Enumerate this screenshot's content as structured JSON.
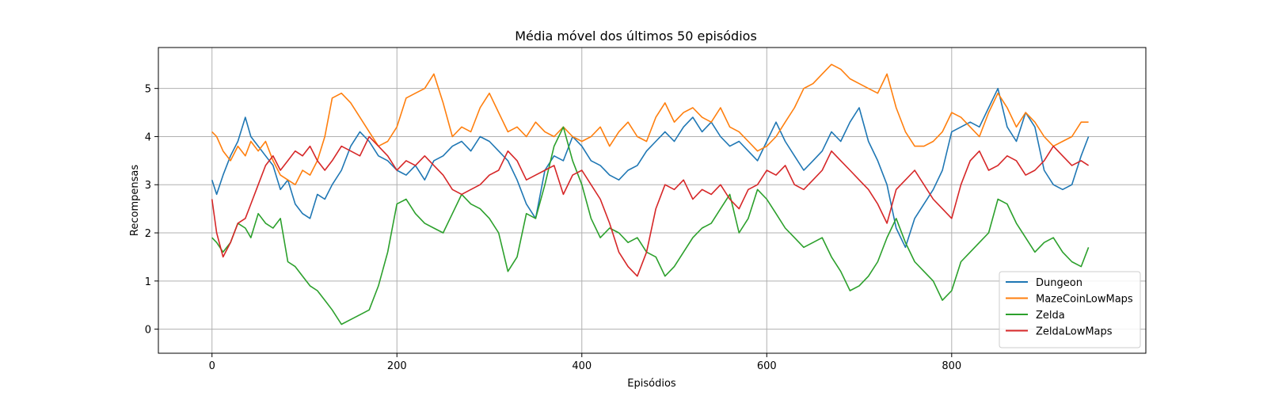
{
  "chart_data": {
    "type": "line",
    "title": "Média móvel dos últimos 50 episódios",
    "xlabel": "Episódios",
    "ylabel": "Recompensas",
    "xlim": [
      -58,
      1010
    ],
    "ylim": [
      -0.5,
      5.85
    ],
    "xticks": [
      0,
      200,
      400,
      600,
      800
    ],
    "yticks": [
      0,
      1,
      2,
      3,
      4,
      5
    ],
    "grid": true,
    "legend_position": "lower-right",
    "series": [
      {
        "name": "Dungeon",
        "color": "#1f77b4",
        "x": [
          0,
          5,
          12,
          20,
          28,
          36,
          42,
          50,
          58,
          66,
          74,
          82,
          90,
          98,
          106,
          114,
          122,
          130,
          140,
          150,
          160,
          170,
          180,
          190,
          200,
          210,
          220,
          230,
          240,
          250,
          260,
          270,
          280,
          290,
          300,
          310,
          320,
          330,
          340,
          350,
          360,
          370,
          380,
          390,
          400,
          410,
          420,
          430,
          440,
          450,
          460,
          470,
          480,
          490,
          500,
          510,
          520,
          530,
          540,
          550,
          560,
          570,
          580,
          590,
          600,
          610,
          620,
          630,
          640,
          650,
          660,
          670,
          680,
          690,
          700,
          710,
          720,
          730,
          740,
          750,
          760,
          770,
          780,
          790,
          800,
          810,
          820,
          830,
          840,
          850,
          860,
          870,
          880,
          890,
          900,
          910,
          920,
          930,
          940,
          948
        ],
        "y": [
          3.1,
          2.8,
          3.2,
          3.6,
          3.9,
          4.4,
          4.0,
          3.8,
          3.6,
          3.4,
          2.9,
          3.1,
          2.6,
          2.4,
          2.3,
          2.8,
          2.7,
          3.0,
          3.3,
          3.8,
          4.1,
          3.9,
          3.6,
          3.5,
          3.3,
          3.2,
          3.4,
          3.1,
          3.5,
          3.6,
          3.8,
          3.9,
          3.7,
          4.0,
          3.9,
          3.7,
          3.5,
          3.1,
          2.6,
          2.3,
          3.3,
          3.6,
          3.5,
          4.0,
          3.8,
          3.5,
          3.4,
          3.2,
          3.1,
          3.3,
          3.4,
          3.7,
          3.9,
          4.1,
          3.9,
          4.2,
          4.4,
          4.1,
          4.3,
          4.0,
          3.8,
          3.9,
          3.7,
          3.5,
          3.9,
          4.3,
          3.9,
          3.6,
          3.3,
          3.5,
          3.7,
          4.1,
          3.9,
          4.3,
          4.6,
          3.9,
          3.5,
          3.0,
          2.1,
          1.7,
          2.3,
          2.6,
          2.9,
          3.3,
          4.1,
          4.2,
          4.3,
          4.2,
          4.6,
          5.0,
          4.2,
          3.9,
          4.5,
          4.2,
          3.3,
          3.0,
          2.9,
          3.0,
          3.6,
          4.0
        ]
      },
      {
        "name": "MazeCoinLowMaps",
        "color": "#ff7f0e",
        "x": [
          0,
          5,
          12,
          20,
          28,
          36,
          42,
          50,
          58,
          66,
          74,
          82,
          90,
          98,
          106,
          114,
          122,
          130,
          140,
          150,
          160,
          170,
          180,
          190,
          200,
          210,
          220,
          230,
          240,
          250,
          260,
          270,
          280,
          290,
          300,
          310,
          320,
          330,
          340,
          350,
          360,
          370,
          380,
          390,
          400,
          410,
          420,
          430,
          440,
          450,
          460,
          470,
          480,
          490,
          500,
          510,
          520,
          530,
          540,
          550,
          560,
          570,
          580,
          590,
          600,
          610,
          620,
          630,
          640,
          650,
          660,
          670,
          680,
          690,
          700,
          710,
          720,
          730,
          740,
          750,
          760,
          770,
          780,
          790,
          800,
          810,
          820,
          830,
          840,
          850,
          860,
          870,
          880,
          890,
          900,
          910,
          920,
          930,
          940,
          948
        ],
        "y": [
          4.1,
          4.0,
          3.7,
          3.5,
          3.8,
          3.6,
          3.9,
          3.7,
          3.9,
          3.5,
          3.2,
          3.1,
          3.0,
          3.3,
          3.2,
          3.5,
          4.0,
          4.8,
          4.9,
          4.7,
          4.4,
          4.1,
          3.8,
          3.9,
          4.2,
          4.8,
          4.9,
          5.0,
          5.3,
          4.7,
          4.0,
          4.2,
          4.1,
          4.6,
          4.9,
          4.5,
          4.1,
          4.2,
          4.0,
          4.3,
          4.1,
          4.0,
          4.2,
          4.0,
          3.9,
          4.0,
          4.2,
          3.8,
          4.1,
          4.3,
          4.0,
          3.9,
          4.4,
          4.7,
          4.3,
          4.5,
          4.6,
          4.4,
          4.3,
          4.6,
          4.2,
          4.1,
          3.9,
          3.7,
          3.8,
          4.0,
          4.3,
          4.6,
          5.0,
          5.1,
          5.3,
          5.5,
          5.4,
          5.2,
          5.1,
          5.0,
          4.9,
          5.3,
          4.6,
          4.1,
          3.8,
          3.8,
          3.9,
          4.1,
          4.5,
          4.4,
          4.2,
          4.0,
          4.5,
          4.9,
          4.6,
          4.2,
          4.5,
          4.3,
          4.0,
          3.8,
          3.9,
          4.0,
          4.3,
          4.3
        ]
      },
      {
        "name": "Zelda",
        "color": "#2ca02c",
        "x": [
          0,
          5,
          12,
          20,
          28,
          36,
          42,
          50,
          58,
          66,
          74,
          82,
          90,
          98,
          106,
          114,
          122,
          130,
          140,
          150,
          160,
          170,
          180,
          190,
          200,
          210,
          220,
          230,
          240,
          250,
          260,
          270,
          280,
          290,
          300,
          310,
          320,
          330,
          340,
          350,
          360,
          370,
          380,
          390,
          400,
          410,
          420,
          430,
          440,
          450,
          460,
          470,
          480,
          490,
          500,
          510,
          520,
          530,
          540,
          550,
          560,
          570,
          580,
          590,
          600,
          610,
          620,
          630,
          640,
          650,
          660,
          670,
          680,
          690,
          700,
          710,
          720,
          730,
          740,
          750,
          760,
          770,
          780,
          790,
          800,
          810,
          820,
          830,
          840,
          850,
          860,
          870,
          880,
          890,
          900,
          910,
          920,
          930,
          940,
          948
        ],
        "y": [
          1.9,
          1.8,
          1.6,
          1.8,
          2.2,
          2.1,
          1.9,
          2.4,
          2.2,
          2.1,
          2.3,
          1.4,
          1.3,
          1.1,
          0.9,
          0.8,
          0.6,
          0.4,
          0.1,
          0.2,
          0.3,
          0.4,
          0.9,
          1.6,
          2.6,
          2.7,
          2.4,
          2.2,
          2.1,
          2.0,
          2.4,
          2.8,
          2.6,
          2.5,
          2.3,
          2.0,
          1.2,
          1.5,
          2.4,
          2.3,
          3.0,
          3.8,
          4.2,
          3.5,
          3.0,
          2.3,
          1.9,
          2.1,
          2.0,
          1.8,
          1.9,
          1.6,
          1.5,
          1.1,
          1.3,
          1.6,
          1.9,
          2.1,
          2.2,
          2.5,
          2.8,
          2.0,
          2.3,
          2.9,
          2.7,
          2.4,
          2.1,
          1.9,
          1.7,
          1.8,
          1.9,
          1.5,
          1.2,
          0.8,
          0.9,
          1.1,
          1.4,
          1.9,
          2.3,
          1.8,
          1.4,
          1.2,
          1.0,
          0.6,
          0.8,
          1.4,
          1.6,
          1.8,
          2.0,
          2.7,
          2.6,
          2.2,
          1.9,
          1.6,
          1.8,
          1.9,
          1.6,
          1.4,
          1.3,
          1.7
        ]
      },
      {
        "name": "ZeldaLowMaps",
        "color": "#d62728",
        "x": [
          0,
          5,
          12,
          20,
          28,
          36,
          42,
          50,
          58,
          66,
          74,
          82,
          90,
          98,
          106,
          114,
          122,
          130,
          140,
          150,
          160,
          170,
          180,
          190,
          200,
          210,
          220,
          230,
          240,
          250,
          260,
          270,
          280,
          290,
          300,
          310,
          320,
          330,
          340,
          350,
          360,
          370,
          380,
          390,
          400,
          410,
          420,
          430,
          440,
          450,
          460,
          470,
          480,
          490,
          500,
          510,
          520,
          530,
          540,
          550,
          560,
          570,
          580,
          590,
          600,
          610,
          620,
          630,
          640,
          650,
          660,
          670,
          680,
          690,
          700,
          710,
          720,
          730,
          740,
          750,
          760,
          770,
          780,
          790,
          800,
          810,
          820,
          830,
          840,
          850,
          860,
          870,
          880,
          890,
          900,
          910,
          920,
          930,
          940,
          948
        ],
        "y": [
          2.7,
          2.0,
          1.5,
          1.8,
          2.2,
          2.3,
          2.6,
          3.0,
          3.4,
          3.6,
          3.3,
          3.5,
          3.7,
          3.6,
          3.8,
          3.5,
          3.3,
          3.5,
          3.8,
          3.7,
          3.6,
          4.0,
          3.8,
          3.6,
          3.3,
          3.5,
          3.4,
          3.6,
          3.4,
          3.2,
          2.9,
          2.8,
          2.9,
          3.0,
          3.2,
          3.3,
          3.7,
          3.5,
          3.1,
          3.2,
          3.3,
          3.4,
          2.8,
          3.2,
          3.3,
          3.0,
          2.7,
          2.2,
          1.6,
          1.3,
          1.1,
          1.6,
          2.5,
          3.0,
          2.9,
          3.1,
          2.7,
          2.9,
          2.8,
          3.0,
          2.7,
          2.5,
          2.9,
          3.0,
          3.3,
          3.2,
          3.4,
          3.0,
          2.9,
          3.1,
          3.3,
          3.7,
          3.5,
          3.3,
          3.1,
          2.9,
          2.6,
          2.2,
          2.9,
          3.1,
          3.3,
          3.0,
          2.7,
          2.5,
          2.3,
          3.0,
          3.5,
          3.7,
          3.3,
          3.4,
          3.6,
          3.5,
          3.2,
          3.3,
          3.5,
          3.8,
          3.6,
          3.4,
          3.5,
          3.4
        ]
      }
    ]
  }
}
